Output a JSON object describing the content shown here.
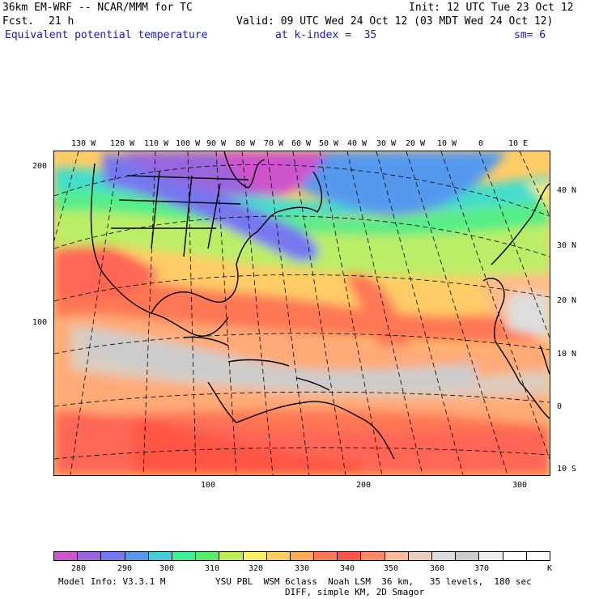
{
  "header": {
    "model": "36km EM-WRF -- NCAR/MMM for TC",
    "init": "Init: 12 UTC Tue 23 Oct 12",
    "fcst_label": "Fcst.",
    "fcst_hours": "21 h",
    "valid": "Valid: 09 UTC Wed 24 Oct 12 (03 MDT Wed 24 Oct 12)",
    "field": "Equivalent potential temperature",
    "level": "at k-index =  35",
    "smooth": "sm= 6"
  },
  "map": {
    "lon_labels": [
      "130 W",
      "120 W",
      "110 W",
      "100 W",
      "90 W",
      "80 W",
      "70 W",
      "60 W",
      "50 W",
      "40 W",
      "30 W",
      "20 W",
      "10 W",
      "0",
      "10 E"
    ],
    "lat_labels": [
      "40 N",
      "30 N",
      "20 N",
      "10 N",
      "0",
      "10 S"
    ],
    "y_axis": [
      "200",
      "100"
    ],
    "x_axis": [
      "100",
      "200",
      "300"
    ]
  },
  "colorbar": {
    "colors": [
      "#cc55cc",
      "#9966dd",
      "#7777ee",
      "#5599ee",
      "#44ccdd",
      "#44ee99",
      "#55ee66",
      "#bbee55",
      "#ffee66",
      "#ffcc66",
      "#ffaa55",
      "#ff7755",
      "#ff5544",
      "#ff8866",
      "#ffbb99",
      "#eeccbb",
      "#dddddd",
      "#cccccc",
      "#eeeeee",
      "#ffffff",
      "#ffffff"
    ],
    "labels": [
      "280",
      "290",
      "300",
      "310",
      "320",
      "330",
      "340",
      "350",
      "360",
      "370"
    ],
    "unit": "K"
  },
  "footer": {
    "model_info": "Model Info: V3.3.1 M",
    "physics": "YSU PBL  WSM 6class  Noah LSM  36 km,   35 levels,  180 sec",
    "diffusion": "DIFF, simple KM, 2D Smagor"
  }
}
